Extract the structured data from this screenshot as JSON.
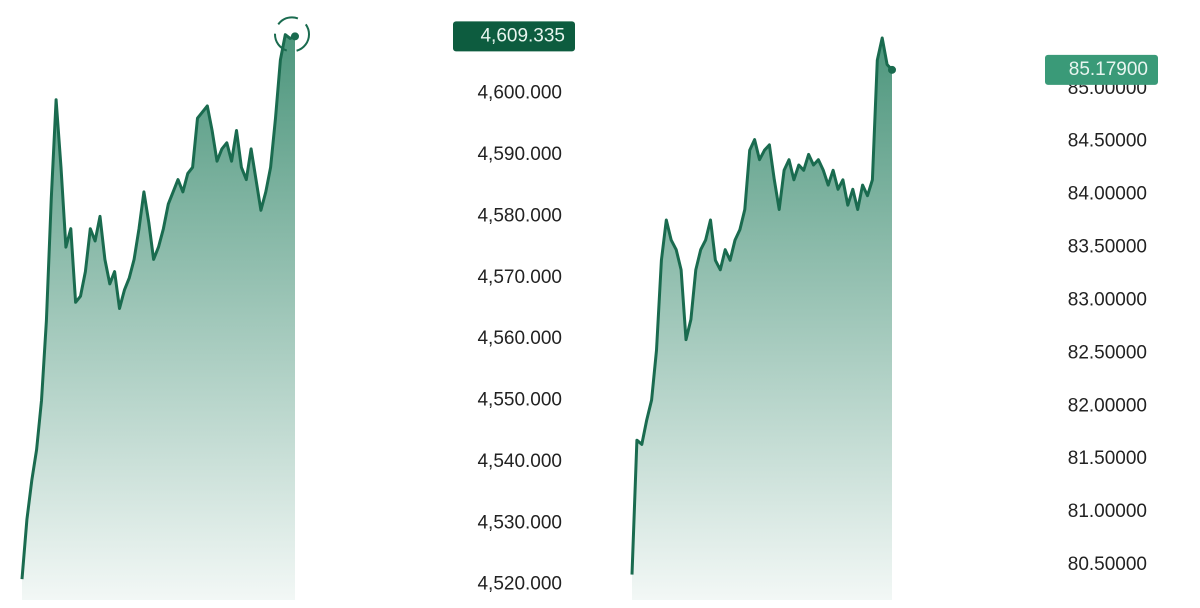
{
  "chart_data": [
    {
      "type": "area",
      "color": "#1a6b4f",
      "label_color": "#0d5c3f",
      "last_marker": true,
      "values": [
        4520.9,
        4530.6,
        4537,
        4542,
        4550,
        4563,
        4583,
        4599,
        4588,
        4575,
        4578,
        4566,
        4567,
        4571,
        4578,
        4576,
        4580,
        4573,
        4569,
        4571,
        4565,
        4568,
        4570,
        4573,
        4578,
        4584,
        4579,
        4573,
        4575,
        4578,
        4582,
        4584,
        4586,
        4584,
        4587,
        4588,
        4596,
        4597,
        4598,
        4594,
        4589,
        4591,
        4592,
        4589,
        4594,
        4588,
        4586,
        4591,
        4586,
        4581,
        4584,
        4588,
        4596,
        4605.5,
        4609.6,
        4609,
        4609.335
      ],
      "current": {
        "value": 4609.335,
        "label": "4,609.335"
      },
      "ylim": [
        4517.5,
        4612
      ],
      "yticks": [
        {
          "value": 4520,
          "label": "4,520.000"
        },
        {
          "value": 4530,
          "label": "4,530.000"
        },
        {
          "value": 4540,
          "label": "4,540.000"
        },
        {
          "value": 4550,
          "label": "4,550.000"
        },
        {
          "value": 4560,
          "label": "4,560.000"
        },
        {
          "value": 4570,
          "label": "4,570.000"
        },
        {
          "value": 4580,
          "label": "4,580.000"
        },
        {
          "value": 4590,
          "label": "4,590.000"
        },
        {
          "value": 4600,
          "label": "4,600.000"
        }
      ]
    },
    {
      "type": "area",
      "color": "#1a6b4f",
      "label_color": "#3a9a78",
      "last_marker": false,
      "values": [
        80.41,
        81.68,
        81.64,
        81.87,
        82.06,
        82.53,
        83.38,
        83.76,
        83.57,
        83.48,
        83.29,
        82.63,
        82.82,
        83.29,
        83.48,
        83.57,
        83.76,
        83.38,
        83.29,
        83.48,
        83.38,
        83.57,
        83.67,
        83.86,
        84.42,
        84.52,
        84.33,
        84.42,
        84.47,
        84.14,
        83.86,
        84.23,
        84.33,
        84.14,
        84.28,
        84.23,
        84.38,
        84.28,
        84.33,
        84.23,
        84.09,
        84.23,
        84.05,
        84.14,
        83.9,
        84.05,
        83.86,
        84.09,
        83.99,
        84.14,
        85.27,
        85.48,
        85.23,
        85.179
      ],
      "current": {
        "value": 85.179,
        "label": "85.17900"
      },
      "ylim": [
        80.17,
        85.65
      ],
      "yticks": [
        {
          "value": 80.5,
          "label": "80.50000"
        },
        {
          "value": 81,
          "label": "81.00000"
        },
        {
          "value": 81.5,
          "label": "81.50000"
        },
        {
          "value": 82,
          "label": "82.00000"
        },
        {
          "value": 82.5,
          "label": "82.50000"
        },
        {
          "value": 83,
          "label": "83.00000"
        },
        {
          "value": 83.5,
          "label": "83.50000"
        },
        {
          "value": 84,
          "label": "84.00000"
        },
        {
          "value": 84.5,
          "label": "84.50000"
        },
        {
          "value": 85,
          "label": "85.00000"
        }
      ]
    }
  ]
}
